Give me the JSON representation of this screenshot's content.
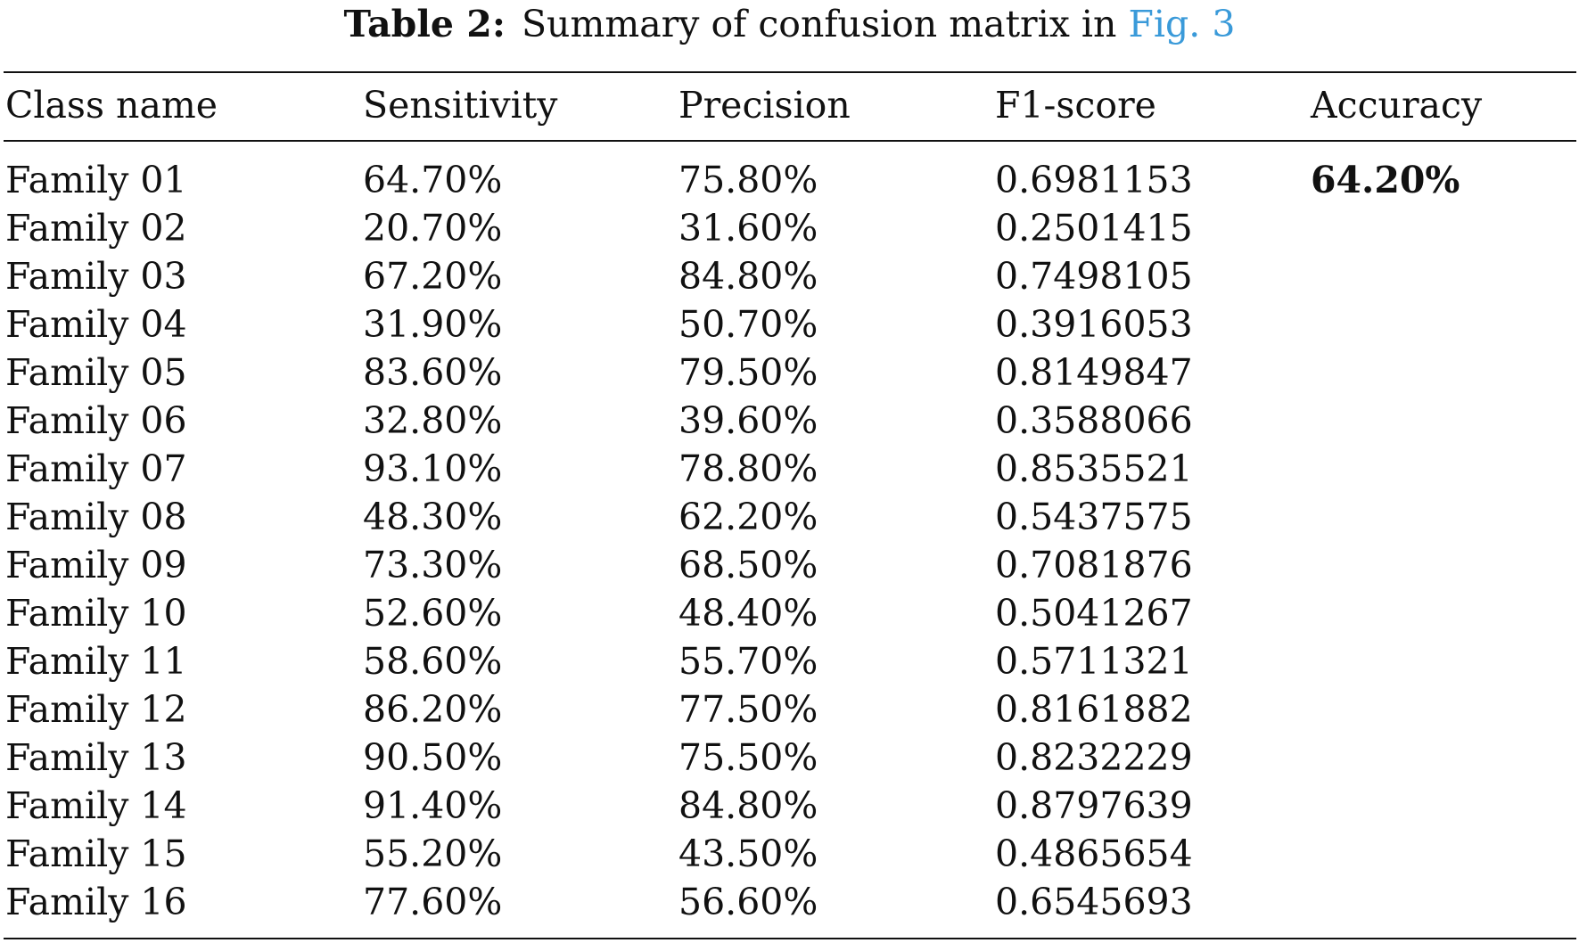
{
  "caption": {
    "label": "Table 2:",
    "text": "Summary of confusion matrix in",
    "link": "Fig. 3"
  },
  "table": {
    "columns": [
      "Class name",
      "Sensitivity",
      "Precision",
      "F1-score",
      "Accuracy"
    ],
    "accuracy": "64.20%",
    "rows": [
      [
        "Family 01",
        "64.70%",
        "75.80%",
        "0.6981153"
      ],
      [
        "Family 02",
        "20.70%",
        "31.60%",
        "0.2501415"
      ],
      [
        "Family 03",
        "67.20%",
        "84.80%",
        "0.7498105"
      ],
      [
        "Family 04",
        "31.90%",
        "50.70%",
        "0.3916053"
      ],
      [
        "Family 05",
        "83.60%",
        "79.50%",
        "0.8149847"
      ],
      [
        "Family 06",
        "32.80%",
        "39.60%",
        "0.3588066"
      ],
      [
        "Family 07",
        "93.10%",
        "78.80%",
        "0.8535521"
      ],
      [
        "Family 08",
        "48.30%",
        "62.20%",
        "0.5437575"
      ],
      [
        "Family 09",
        "73.30%",
        "68.50%",
        "0.7081876"
      ],
      [
        "Family 10",
        "52.60%",
        "48.40%",
        "0.5041267"
      ],
      [
        "Family 11",
        "58.60%",
        "55.70%",
        "0.5711321"
      ],
      [
        "Family 12",
        "86.20%",
        "77.50%",
        "0.8161882"
      ],
      [
        "Family 13",
        "90.50%",
        "75.50%",
        "0.8232229"
      ],
      [
        "Family 14",
        "91.40%",
        "84.80%",
        "0.8797639"
      ],
      [
        "Family 15",
        "55.20%",
        "43.50%",
        "0.4865654"
      ],
      [
        "Family 16",
        "77.60%",
        "56.60%",
        "0.6545693"
      ]
    ]
  }
}
